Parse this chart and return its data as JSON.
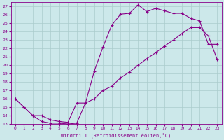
{
  "xlabel": "Windchill (Refroidissement éolien,°C)",
  "ylabel": "",
  "bg_color": "#cce8ea",
  "line_color": "#880088",
  "grid_color": "#aacccc",
  "xlim": [
    -0.5,
    23.5
  ],
  "ylim": [
    13,
    27.5
  ],
  "xticks": [
    0,
    1,
    2,
    3,
    4,
    5,
    6,
    7,
    8,
    9,
    10,
    11,
    12,
    13,
    14,
    15,
    16,
    17,
    18,
    19,
    20,
    21,
    22,
    23
  ],
  "yticks": [
    13,
    14,
    15,
    16,
    17,
    18,
    19,
    20,
    21,
    22,
    23,
    24,
    25,
    26,
    27
  ],
  "line1_x": [
    0,
    1,
    2,
    3,
    4,
    5,
    6,
    7,
    8,
    9,
    10,
    11,
    12,
    13,
    14,
    15,
    16,
    17,
    18,
    19,
    20,
    21,
    22,
    23
  ],
  "line1_y": [
    16,
    15,
    14,
    13.3,
    13.1,
    13.1,
    13.0,
    13.1,
    15.5,
    19.3,
    22.2,
    24.8,
    26.1,
    26.2,
    27.2,
    26.4,
    26.8,
    26.5,
    26.2,
    26.2,
    25.6,
    25.3,
    22.5,
    22.5
  ],
  "line2_x": [
    0,
    1,
    2,
    3,
    4,
    5,
    6,
    7,
    8,
    9,
    10,
    11,
    12,
    13,
    14,
    15,
    16,
    17,
    18,
    19,
    20,
    21,
    22,
    23
  ],
  "line2_y": [
    16,
    15,
    14,
    14.0,
    13.5,
    13.3,
    13.2,
    15.5,
    15.5,
    16.0,
    17.0,
    17.5,
    18.5,
    19.2,
    20.0,
    20.8,
    21.5,
    22.3,
    23.0,
    23.8,
    24.5,
    24.5,
    23.5,
    20.7
  ],
  "marker": "+"
}
